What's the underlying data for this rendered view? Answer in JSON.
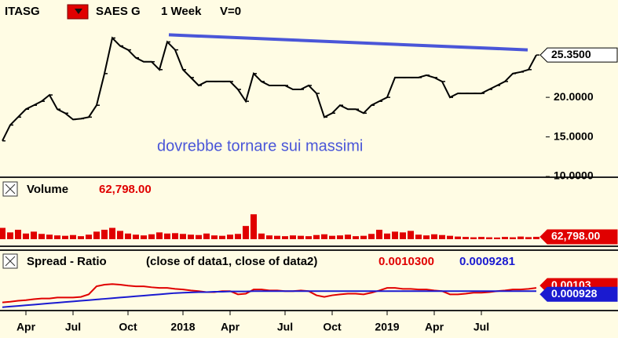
{
  "chart_data": [
    {
      "type": "line",
      "symbol": "ITASG",
      "title": "SAES G",
      "period": "1 Week",
      "volume_setting": "V=0",
      "color": "#000000",
      "values": [
        14.5,
        16.5,
        17.5,
        18.5,
        19,
        19.5,
        20.3,
        18.5,
        18,
        17.2,
        17.3,
        17.5,
        19,
        23,
        27.5,
        26.5,
        26,
        25,
        24.5,
        24.5,
        23.5,
        27,
        26,
        23.5,
        22.5,
        21.5,
        22,
        22,
        22,
        22,
        21,
        19.5,
        23,
        22,
        21.5,
        21.5,
        21.5,
        21,
        21,
        21.5,
        20.5,
        17.5,
        18,
        19,
        18.5,
        18.5,
        18,
        19,
        19.5,
        20,
        22.5,
        22.5,
        22.5,
        22.5,
        22.8,
        22.5,
        22,
        20,
        20.5,
        20.5,
        20.5,
        20.5,
        21,
        21.5,
        22,
        23,
        23.2,
        23.5,
        25.35
      ],
      "ylim": [
        10.3,
        32.3
      ],
      "yticks": [
        {
          "value": 10,
          "label": "10.0000"
        },
        {
          "value": 15,
          "label": "15.0000"
        },
        {
          "value": 20,
          "label": "20.0000"
        }
      ],
      "last_label": {
        "value": 25.35,
        "label": "25.3500"
      },
      "trendline": {
        "color": "#4a56d8",
        "x": [
          21.2,
          66.9
        ],
        "values": [
          27.9,
          26.0
        ]
      },
      "annotation": "dovrebbe tornare sui massimi"
    },
    {
      "type": "bar",
      "title": "Volume",
      "color": "#e00000",
      "ylim": [
        0,
        1600000
      ],
      "values": [
        300000,
        180000,
        250000,
        150000,
        200000,
        140000,
        120000,
        100000,
        90000,
        110000,
        80000,
        120000,
        200000,
        250000,
        300000,
        220000,
        150000,
        120000,
        100000,
        130000,
        180000,
        150000,
        160000,
        140000,
        120000,
        110000,
        150000,
        100000,
        90000,
        120000,
        140000,
        350000,
        660000,
        150000,
        100000,
        90000,
        80000,
        100000,
        90000,
        80000,
        110000,
        130000,
        90000,
        100000,
        120000,
        80000,
        90000,
        140000,
        250000,
        150000,
        200000,
        180000,
        220000,
        120000,
        100000,
        130000,
        110000,
        90000,
        70000,
        60000,
        50000,
        60000,
        50000,
        45000,
        60000,
        50000,
        70000,
        55000,
        62798
      ],
      "last_label": {
        "value": 62798,
        "label": "62,798.00"
      }
    },
    {
      "type": "line",
      "title": "Spread - Ratio",
      "formula": "(close of data1,  close of data2)",
      "ylim": [
        0.00035,
        0.00218
      ],
      "categories": [
        null,
        null,
        null,
        "Apr",
        null,
        null,
        null,
        null,
        null,
        "Jul",
        null,
        null,
        null,
        null,
        null,
        null,
        "Oct",
        null,
        null,
        null,
        null,
        null,
        null,
        "2018",
        null,
        null,
        null,
        null,
        null,
        "Apr",
        null,
        null,
        null,
        null,
        null,
        null,
        "Jul",
        null,
        null,
        null,
        null,
        null,
        "Oct",
        null,
        null,
        null,
        null,
        null,
        null,
        "2019",
        null,
        null,
        null,
        null,
        null,
        "Apr",
        null,
        null,
        null,
        null,
        null,
        "Jul",
        null,
        null,
        null,
        null,
        null,
        null,
        null
      ],
      "series": [
        {
          "color": "#e00000",
          "last_label": "0.0010300",
          "axis_label": "0.00103",
          "values": [
            0.00058,
            0.0006,
            0.00063,
            0.00065,
            0.00068,
            0.0007,
            0.0007,
            0.00073,
            0.00073,
            0.00073,
            0.00075,
            0.00083,
            0.00108,
            0.00113,
            0.00115,
            0.00113,
            0.0011,
            0.00108,
            0.00108,
            0.00105,
            0.00103,
            0.00103,
            0.001,
            0.00098,
            0.00095,
            0.00093,
            0.0009,
            0.0009,
            0.00093,
            0.00093,
            0.00083,
            0.00085,
            0.00098,
            0.00098,
            0.00095,
            0.00095,
            0.00093,
            0.00093,
            0.00095,
            0.00093,
            0.0008,
            0.00075,
            0.0008,
            0.00083,
            0.00085,
            0.00085,
            0.00083,
            0.00088,
            0.00095,
            0.00103,
            0.00103,
            0.001,
            0.001,
            0.00098,
            0.00098,
            0.00095,
            0.00093,
            0.00083,
            0.00083,
            0.00085,
            0.00088,
            0.00088,
            0.0009,
            0.00093,
            0.00095,
            0.00098,
            0.00098,
            0.001,
            0.00103
          ]
        },
        {
          "color": "#1a1ad0",
          "last_label": "0.0009281",
          "axis_label": "0.000928",
          "values": [
            0.00043,
            0.00045,
            0.00047,
            0.00049,
            0.00051,
            0.00053,
            0.00055,
            0.00057,
            0.00059,
            0.00061,
            0.00063,
            0.00065,
            0.00067,
            0.00069,
            0.00071,
            0.00073,
            0.00075,
            0.00077,
            0.00079,
            0.00081,
            0.00083,
            0.00085,
            0.00087,
            0.00088,
            0.00089,
            0.0009,
            0.0009,
            0.00091,
            0.00091,
            0.00092,
            0.00092,
            0.00092,
            0.00093,
            0.00093,
            0.00093,
            0.00093,
            0.00093,
            0.00093,
            0.00093,
            0.00093,
            0.00093,
            0.00093,
            0.00093,
            0.00093,
            0.00093,
            0.00093,
            0.00093,
            0.00093,
            0.00093,
            0.00093,
            0.00093,
            0.00093,
            0.00093,
            0.00093,
            0.00093,
            0.00093,
            0.00093,
            0.00093,
            0.00093,
            0.00093,
            0.00093,
            0.00093,
            0.00093,
            0.00093,
            0.00093,
            0.00093,
            0.00093,
            0.00093,
            0.0009281
          ]
        }
      ]
    }
  ]
}
